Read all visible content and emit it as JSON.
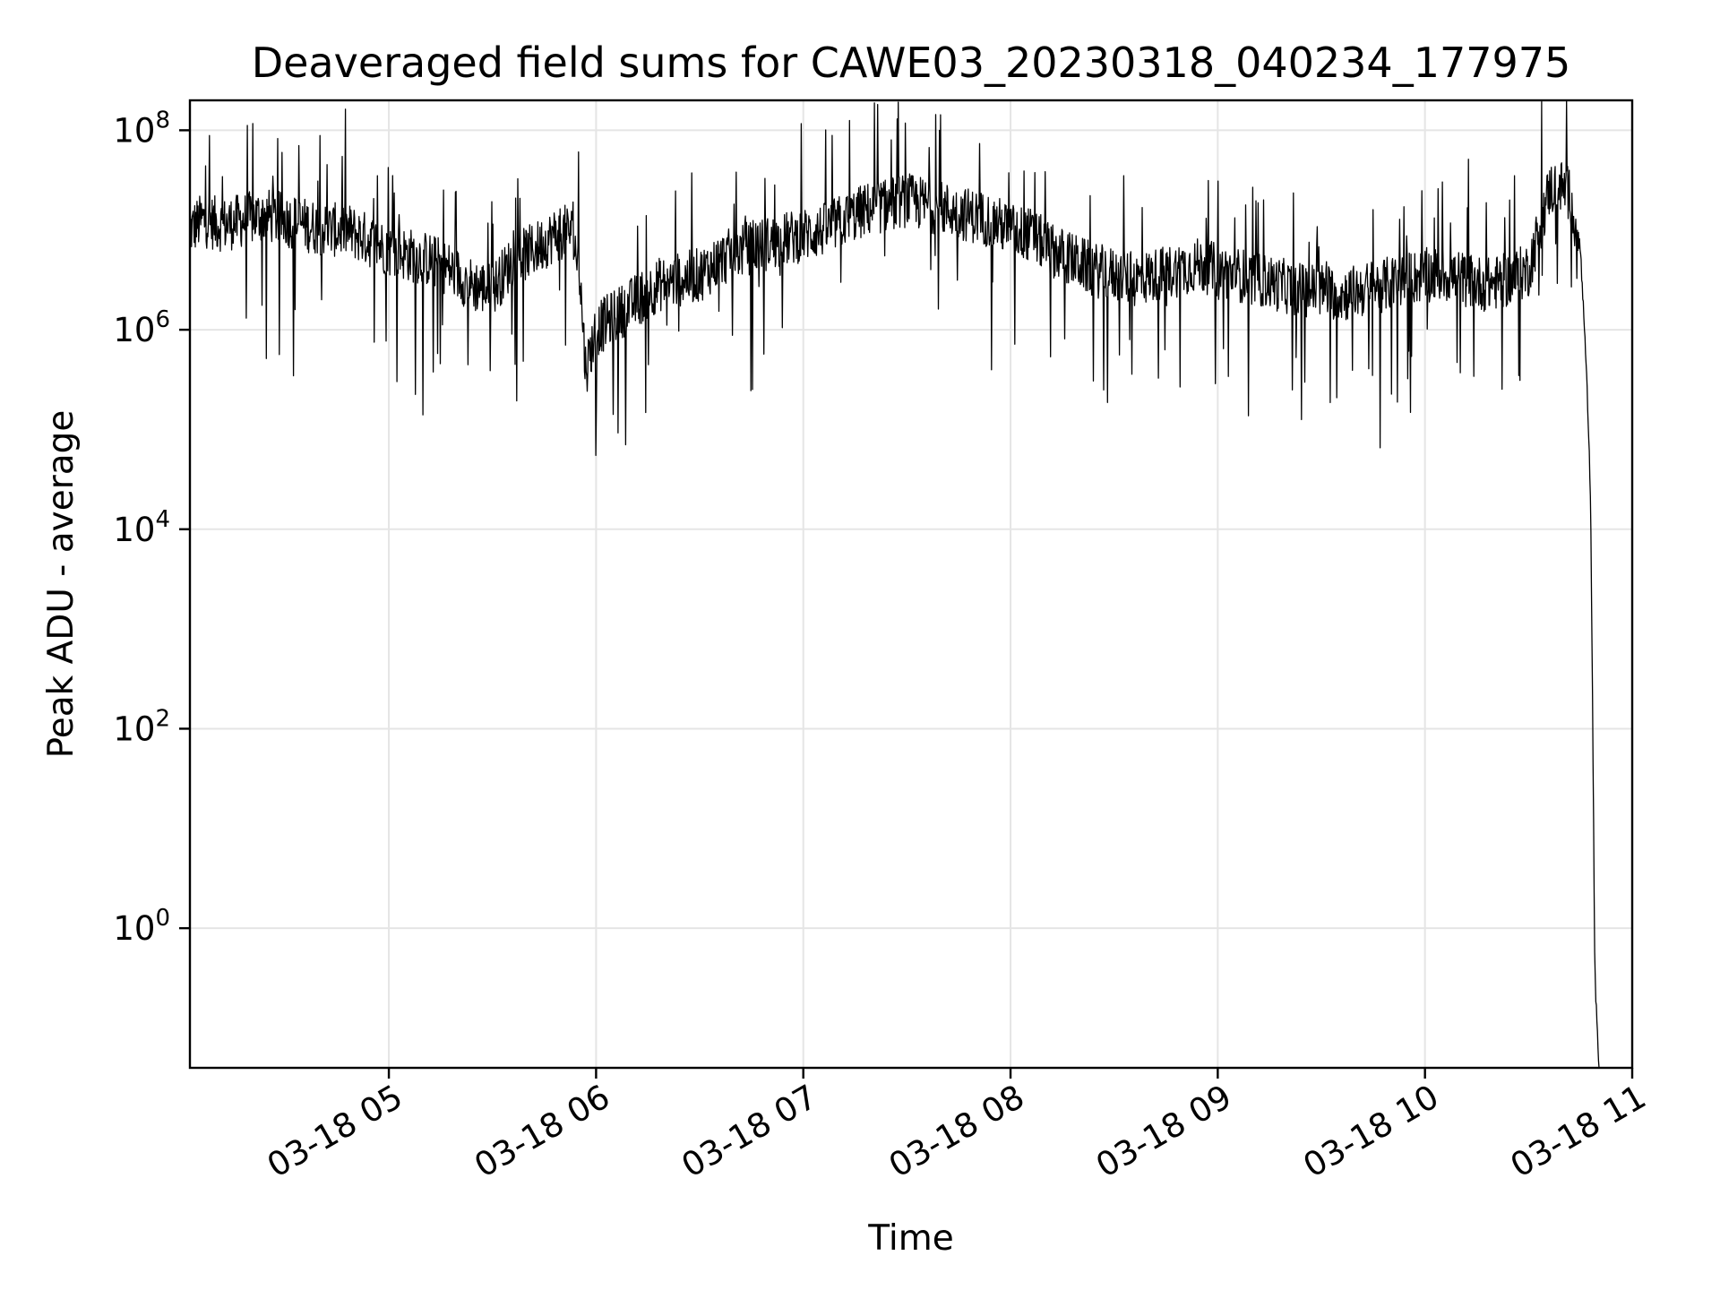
{
  "chart_data": {
    "type": "line",
    "title": "Deaveraged field sums for CAWE03_20230318_040234_177975",
    "xlabel": "Time",
    "ylabel": "Peak ADU - average",
    "yscale": "log",
    "ylim_exponent": [
      -1.4,
      8.3
    ],
    "xlim_hours": [
      4.04,
      11.0
    ],
    "grid": true,
    "line_color": "#000000",
    "grid_color": "#e5e5e5",
    "x_ticks": [
      {
        "hour": 5,
        "label": "03-18 05"
      },
      {
        "hour": 6,
        "label": "03-18 06"
      },
      {
        "hour": 7,
        "label": "03-18 07"
      },
      {
        "hour": 8,
        "label": "03-18 08"
      },
      {
        "hour": 9,
        "label": "03-18 09"
      },
      {
        "hour": 10,
        "label": "03-18 10"
      },
      {
        "hour": 11,
        "label": "03-18 11"
      }
    ],
    "y_ticks": [
      {
        "exp": 0,
        "base": "10",
        "sup": "0"
      },
      {
        "exp": 2,
        "base": "10",
        "sup": "2"
      },
      {
        "exp": 4,
        "base": "10",
        "sup": "4"
      },
      {
        "exp": 6,
        "base": "10",
        "sup": "6"
      },
      {
        "exp": 8,
        "base": "10",
        "sup": "8"
      }
    ],
    "series": [
      {
        "x_hours": [
          4.04,
          4.1,
          4.2,
          4.3,
          4.4,
          4.5,
          4.6,
          4.7,
          4.8,
          4.9,
          5.0,
          5.1,
          5.2,
          5.3,
          5.4,
          5.5,
          5.6,
          5.7,
          5.8,
          5.88,
          5.92,
          5.95,
          6.0,
          6.1,
          6.2,
          6.3,
          6.4,
          6.5,
          6.6,
          6.7,
          6.8,
          6.9,
          7.0,
          7.1,
          7.2,
          7.3,
          7.4,
          7.5,
          7.6,
          7.7,
          7.8,
          7.9,
          8.0,
          8.1,
          8.2,
          8.3,
          8.4,
          8.5,
          8.6,
          8.7,
          8.8,
          8.9,
          9.0,
          9.1,
          9.2,
          9.3,
          9.4,
          9.5,
          9.6,
          9.7,
          9.8,
          9.9,
          10.0,
          10.1,
          10.2,
          10.3,
          10.4,
          10.5,
          10.55,
          10.6,
          10.65,
          10.7,
          10.75,
          10.77,
          10.79,
          10.8,
          10.81,
          10.82,
          10.83,
          10.84
        ],
        "y_exponent": [
          7.0,
          7.1,
          7.05,
          7.1,
          7.15,
          7.1,
          7.05,
          7.0,
          7.0,
          6.9,
          6.8,
          6.75,
          6.7,
          6.6,
          6.45,
          6.4,
          6.7,
          6.8,
          6.95,
          7.0,
          6.6,
          5.6,
          6.0,
          6.15,
          6.3,
          6.45,
          6.5,
          6.55,
          6.7,
          6.8,
          6.85,
          6.9,
          6.95,
          7.0,
          7.1,
          7.2,
          7.25,
          7.3,
          7.25,
          7.2,
          7.15,
          7.1,
          7.0,
          6.95,
          6.8,
          6.7,
          6.6,
          6.55,
          6.5,
          6.55,
          6.6,
          6.65,
          6.6,
          6.55,
          6.5,
          6.45,
          6.4,
          6.4,
          6.35,
          6.4,
          6.45,
          6.5,
          6.55,
          6.55,
          6.5,
          6.45,
          6.5,
          6.6,
          7.0,
          7.4,
          7.45,
          7.35,
          6.8,
          6.0,
          5.0,
          4.2,
          2.0,
          -0.5,
          -1.0,
          -1.4
        ]
      }
    ]
  }
}
